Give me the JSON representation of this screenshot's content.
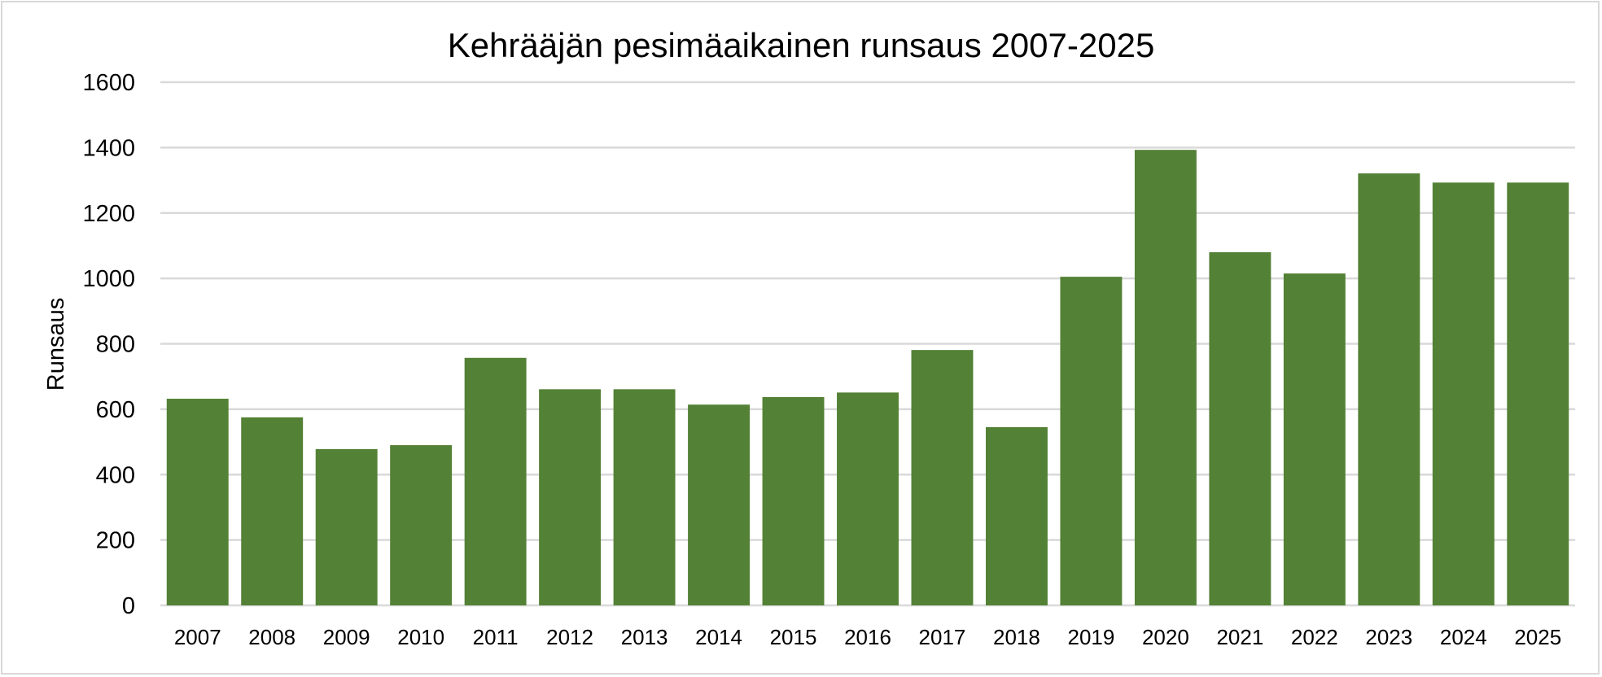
{
  "chart_data": {
    "type": "bar",
    "title": "Kehrääjän pesimäaikainen runsaus 2007-2025",
    "xlabel": "",
    "ylabel": "Runsaus",
    "categories": [
      "2007",
      "2008",
      "2009",
      "2010",
      "2011",
      "2012",
      "2013",
      "2014",
      "2015",
      "2016",
      "2017",
      "2018",
      "2019",
      "2020",
      "2021",
      "2022",
      "2023",
      "2024",
      "2025"
    ],
    "values": [
      632,
      575,
      478,
      490,
      757,
      661,
      661,
      614,
      637,
      651,
      781,
      545,
      1005,
      1393,
      1080,
      1015,
      1321,
      1293,
      1293
    ],
    "ylim": [
      0,
      1600
    ],
    "yticks": [
      0,
      200,
      400,
      600,
      800,
      1000,
      1200,
      1400,
      1600
    ],
    "grid": true,
    "legend": "none",
    "bar_color": "#538135",
    "grid_color": "#d9d9d9"
  }
}
